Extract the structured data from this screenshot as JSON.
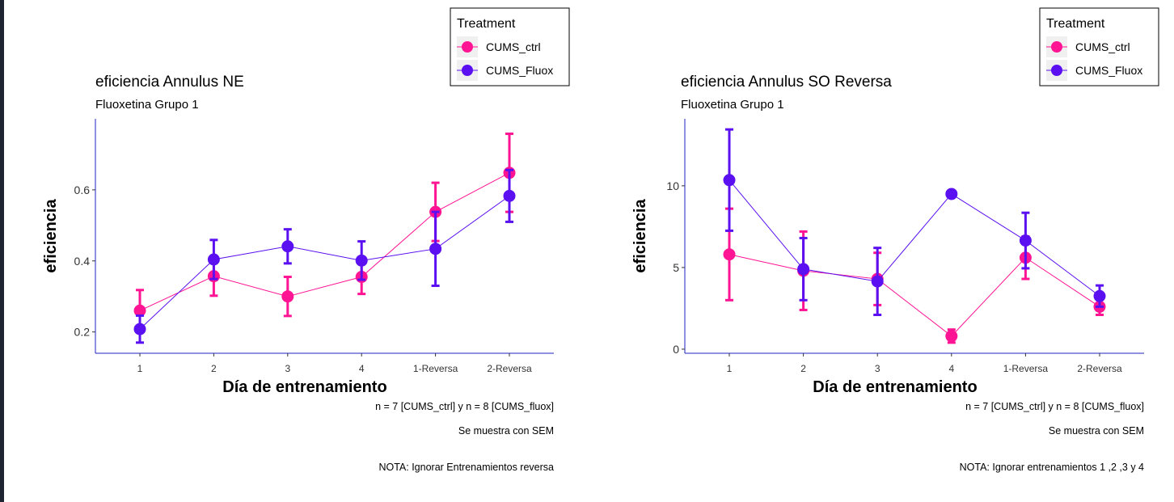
{
  "colors": {
    "ctrl": "#ff1493",
    "fluox": "#5a10f0",
    "axis": "#2020c0"
  },
  "chart_data": [
    {
      "type": "line",
      "title": "eficiencia Annulus NE",
      "subtitle": "Fluoxetina Grupo 1",
      "xlabel": "Día de entrenamiento",
      "ylabel": "eficiencia",
      "categories": [
        "1",
        "2",
        "3",
        "4",
        "1-Reversa",
        "2-Reversa"
      ],
      "ylim": [
        0.14,
        0.8
      ],
      "yticks": [
        0.2,
        0.4,
        0.6
      ],
      "ytick_labels": [
        "0.2",
        "0.4",
        "0.6"
      ],
      "grid": false,
      "legend_title": "Treatment",
      "legend_position": "top-right",
      "series": [
        {
          "name": "CUMS_ctrl",
          "color_key": "ctrl",
          "values": [
            0.26,
            0.357,
            0.3,
            0.355,
            0.538,
            0.648
          ],
          "errors": [
            0.058,
            0.055,
            0.055,
            0.048,
            0.082,
            0.11
          ]
        },
        {
          "name": "CUMS_Fluox",
          "color_key": "fluox",
          "values": [
            0.208,
            0.404,
            0.441,
            0.401,
            0.434,
            0.583
          ],
          "errors": [
            0.038,
            0.055,
            0.048,
            0.054,
            0.104,
            0.073
          ]
        }
      ],
      "captions": [
        "n = 7  [CUMS_ctrl] y n = 8 [CUMS_fluox]",
        "Se muestra con SEM",
        "NOTA: Ignorar Entrenamientos reversa"
      ]
    },
    {
      "type": "line",
      "title": "eficiencia Annulus SO Reversa",
      "subtitle": "Fluoxetina Grupo 1",
      "xlabel": "Día de entrenamiento",
      "ylabel": "eficiencia",
      "categories": [
        "1",
        "2",
        "3",
        "4",
        "1-Reversa",
        "2-Reversa"
      ],
      "ylim": [
        -0.25,
        14.1
      ],
      "yticks": [
        0,
        5,
        10
      ],
      "ytick_labels": [
        "0",
        "5",
        "10"
      ],
      "grid": false,
      "legend_title": "Treatment",
      "legend_position": "top-right",
      "series": [
        {
          "name": "CUMS_ctrl",
          "color_key": "ctrl",
          "values": [
            5.8,
            4.8,
            4.3,
            0.8,
            5.6,
            2.6
          ],
          "errors": [
            2.8,
            2.4,
            1.6,
            0.4,
            1.3,
            0.5
          ]
        },
        {
          "name": "CUMS_Fluox",
          "color_key": "fluox",
          "values": [
            10.35,
            4.9,
            4.15,
            9.5,
            6.65,
            3.25
          ],
          "errors": [
            3.1,
            1.9,
            2.05,
            0.1,
            1.7,
            0.65
          ]
        }
      ],
      "captions": [
        "n = 7  [CUMS_ctrl] y n = 8 [CUMS_fluox]",
        "Se muestra con SEM",
        "NOTA: Ignorar entrenamientos 1 ,2 ,3 y 4"
      ]
    }
  ]
}
